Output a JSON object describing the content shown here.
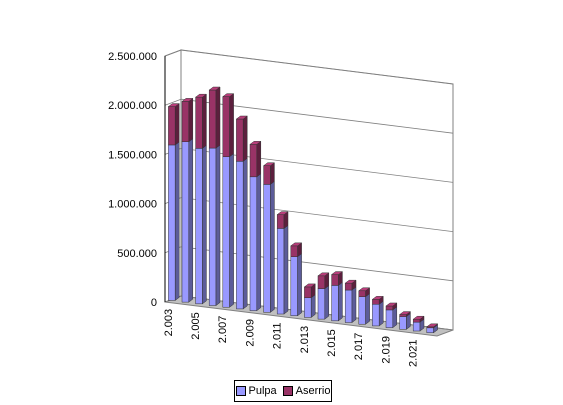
{
  "chart_data": {
    "type": "bar",
    "stacked": true,
    "three_d": true,
    "title": "",
    "xlabel": "",
    "ylabel": "",
    "ylim": [
      0,
      2500000
    ],
    "y_ticks": [
      "0",
      "500.000",
      "1.000.000",
      "1.500.000",
      "2.000.000",
      "2.500.000"
    ],
    "categories": [
      "2.003",
      "2.004",
      "2.005",
      "2.006",
      "2.007",
      "2.008",
      "2.009",
      "2.010",
      "2.011",
      "2.012",
      "2.013",
      "2.014",
      "2.015",
      "2.016",
      "2.017",
      "2.018",
      "2.019",
      "2.020",
      "2.021",
      "2.022"
    ],
    "x_tick_labels_shown": [
      "2.003",
      "2.005",
      "2.007",
      "2.009",
      "2.011",
      "2.013",
      "2.015",
      "2.017",
      "2.019",
      "2.021"
    ],
    "series": [
      {
        "name": "Pulpa",
        "color": "#9999ff",
        "values": [
          1580000,
          1630000,
          1580000,
          1600000,
          1530000,
          1500000,
          1360000,
          1300000,
          870000,
          600000,
          200000,
          310000,
          360000,
          330000,
          280000,
          220000,
          180000,
          130000,
          90000,
          50000
        ]
      },
      {
        "name": "Aserrio",
        "color": "#993366",
        "values": [
          390000,
          410000,
          520000,
          590000,
          610000,
          430000,
          330000,
          190000,
          140000,
          110000,
          110000,
          130000,
          110000,
          70000,
          60000,
          50000,
          40000,
          20000,
          30000,
          10000
        ]
      }
    ],
    "grid": true,
    "legend_position": "bottom"
  },
  "legend": {
    "items": [
      {
        "label": "Pulpa",
        "color": "#9999ff"
      },
      {
        "label": "Aserrio",
        "color": "#993366"
      }
    ]
  }
}
